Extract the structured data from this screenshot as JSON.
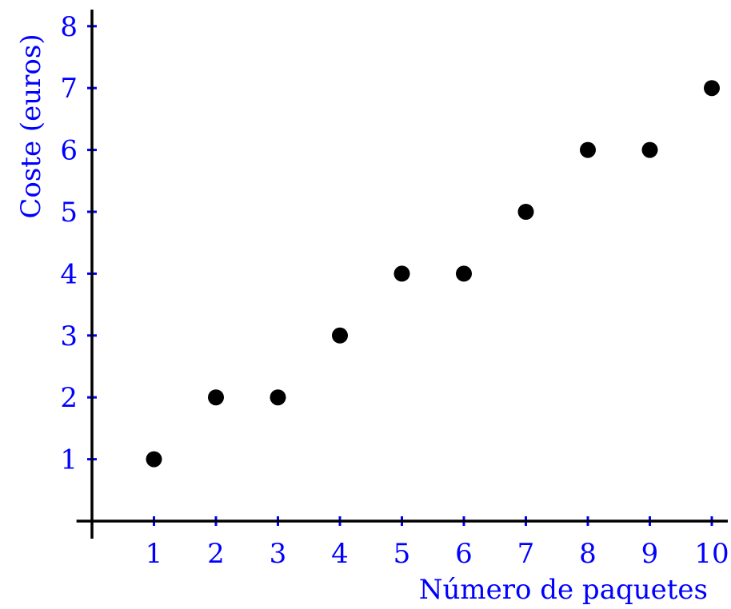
{
  "chart_data": {
    "type": "scatter",
    "xlabel": "Número de paquetes",
    "ylabel": "Coste (euros)",
    "xlim": [
      -0.25,
      10.3
    ],
    "ylim": [
      -0.3,
      8.3
    ],
    "x_ticks": [
      1,
      2,
      3,
      4,
      5,
      6,
      7,
      8,
      9,
      10
    ],
    "y_ticks": [
      1,
      2,
      3,
      4,
      5,
      6,
      7,
      8
    ],
    "x_tick_labels": [
      "1",
      "2",
      "3",
      "4",
      "5",
      "6",
      "7",
      "8",
      "9",
      "10"
    ],
    "y_tick_labels": [
      "1",
      "2",
      "3",
      "4",
      "5",
      "6",
      "7",
      "8"
    ],
    "series": [
      {
        "x": [
          1,
          2,
          3,
          4,
          5,
          6,
          7,
          8,
          9,
          10
        ],
        "y": [
          1,
          2,
          2,
          3,
          4,
          4,
          5,
          6,
          6,
          7
        ]
      }
    ],
    "grid": false,
    "colors": {
      "axis": "#000000",
      "labels": "#0000ff",
      "points": "#000000"
    }
  }
}
